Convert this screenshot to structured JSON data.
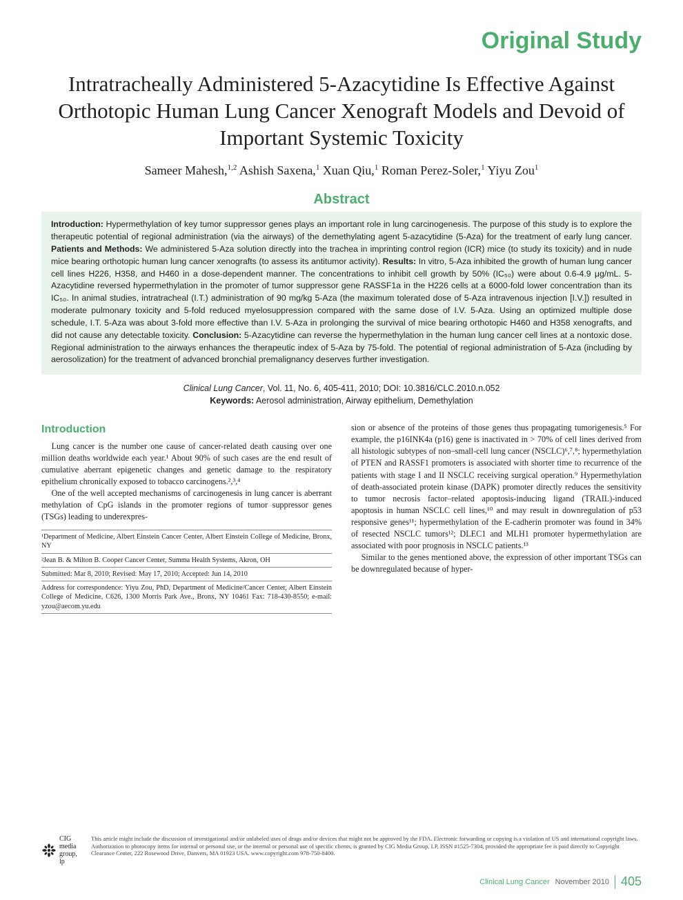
{
  "colors": {
    "accent": "#4cae6d",
    "abstract_bg": "#e8f3eb",
    "text": "#231f20",
    "footer_text": "#444444",
    "rule": "#888888"
  },
  "header": {
    "label": "Original Study"
  },
  "title": "Intratracheally Administered 5-Azacytidine Is Effective Against Orthotopic Human Lung Cancer Xenograft Models and Devoid of Important Systemic Toxicity",
  "authors_html": "Sameer Mahesh,<sup>1,2</sup> Ashish Saxena,<sup>1</sup> Xuan Qiu,<sup>1</sup> Roman Perez-Soler,<sup>1</sup> Yiyu Zou<sup>1</sup>",
  "abstract": {
    "heading": "Abstract",
    "intro_label": "Introduction:",
    "intro": " Hypermethylation of key tumor suppressor genes plays an important role in lung carcinogenesis. The purpose of this study is to explore the therapeutic potential of regional administration (via the airways) of the demethylating agent 5-azacytidine (5-Aza) for the treatment of early lung cancer. ",
    "pm_label": "Patients and Methods:",
    "pm": " We administered 5-Aza solution directly into the trachea in imprinting control region (ICR) mice (to study its toxicity) and in nude mice bearing orthotopic human lung cancer xenografts (to assess its antitumor activity). ",
    "res_label": "Results:",
    "res": " In vitro, 5-Aza inhibited the growth of human lung cancer cell lines H226, H358, and H460 in a dose-dependent manner. The concentrations to inhibit cell growth by 50% (IC₅₀) were about 0.6-4.9 μg/mL. 5-Azacytidine reversed hypermethylation in the promoter of tumor suppressor gene RASSF1a in the H226 cells at a 6000-fold lower concentration than its IC₅₀. In animal studies, intratracheal (I.T.) administration of 90 mg/kg 5-Aza (the maximum tolerated dose of 5-Aza intravenous injection [I.V.]) resulted in moderate pulmonary toxicity and 5-fold reduced myelosuppression compared with the same dose of I.V. 5-Aza. Using an optimized multiple dose schedule, I.T. 5-Aza was about 3-fold more effective than I.V. 5-Aza in prolonging the survival of mice bearing orthotopic H460 and H358 xenografts, and did not cause any detectable toxicity. ",
    "con_label": "Conclusion:",
    "con": " 5-Azacytidine can reverse the hypermethylation in the human lung cancer cell lines at a nontoxic dose. Regional administration to the airways enhances the therapeutic index of 5-Aza by 75-fold. The potential of regional administration of 5-Aza (including by aerosolization) for the treatment of advanced bronchial premalignancy deserves further investigation."
  },
  "citation": {
    "journal": "Clinical Lung Cancer",
    "rest": ", Vol. 11, No. 6, 405-411, 2010; DOI: 10.3816/CLC.2010.n.052",
    "kw_label": "Keywords:",
    "kw": " Aerosol administration, Airway epithelium, Demethylation"
  },
  "body": {
    "intro_heading": "Introduction",
    "left_p1": "Lung cancer is the number one cause of cancer-related death causing over one million deaths worldwide each year.¹ About 90% of such cases are the end result of cumulative aberrant epigenetic changes and genetic damage to the respiratory epithelium chronically exposed to tobacco carcinogens.²,³,⁴",
    "left_p2": "One of the well accepted mechanisms of carcinogenesis in lung cancer is aberrant methylation of CpG islands in the promoter regions of tumor suppressor genes (TSGs) leading to underexpres-",
    "right_p1": "sion or absence of the proteins of those genes thus propagating tumorigenesis.⁵ For example, the p16INK4a (p16) gene is inactivated in > 70% of cell lines derived from all histologic subtypes of non–small-cell lung cancer (NSCLC)⁶,⁷,⁸; hypermethylation of PTEN and RASSF1 promoters is associated with shorter time to recurrence of the patients with stage I and II NSCLC receiving surgical operation.⁹ Hypermethylation of death-associated protein kinase (DAPK) promoter directly reduces the sensitivity to tumor necrosis factor–related apoptosis-inducing ligand (TRAIL)-induced apoptosis in human NSCLC cell lines,¹⁰ and may result in downregulation of p53 responsive genes¹¹; hypermethylation of the E-cadherin promoter was found in 34% of resected NSCLC tumors¹²; DLEC1 and MLH1 promoter hypermethylation are associated with poor prognosis in NSCLC patients.¹³",
    "right_p2": "Similar to the genes mentioned above, the expression of other important TSGs can be downregulated because of hyper-"
  },
  "affiliations": {
    "a1": "¹Department of Medicine, Albert Einstein Cancer Center, Albert Einstein College of Medicine, Bronx, NY",
    "a2": "²Jean B. & Milton B. Cooper Cancer Center, Summa Health Systems, Akron, OH",
    "dates": "Submitted: Mar 8, 2010; Revised: May 17, 2010; Accepted: Jun 14, 2010",
    "corr": "Address for correspondence: Yiyu Zou, PhD, Department of Medicine/Cancer Center, Albert Einstein College of Medicine, C626, 1300 Morris Park Ave., Bronx, NY 10461 Fax: 718-430-8550; e-mail: yzou@aecom.yu.edu"
  },
  "footer": {
    "logo_text": "CIG media group, lp",
    "disclaimer": "This article might include the discussion of investigational and/or unlabeled uses of drugs and/or devices that might not be approved by the FDA. Electronic forwarding or copying is a violation of US and international copyright laws. Authorization to photocopy items for internal or personal use, or the internal or personal use of specific clients, is granted by CIG Media Group, LP, ISSN #1525-7304, provided the appropriate fee is paid directly to Copyright Clearance Center, 222 Rosewood Drive, Danvers, MA 01923 USA. www.copyright.com 978-750-8400."
  },
  "page_footer": {
    "journal": "Clinical Lung Cancer",
    "date": "November 2010",
    "page": "405"
  }
}
